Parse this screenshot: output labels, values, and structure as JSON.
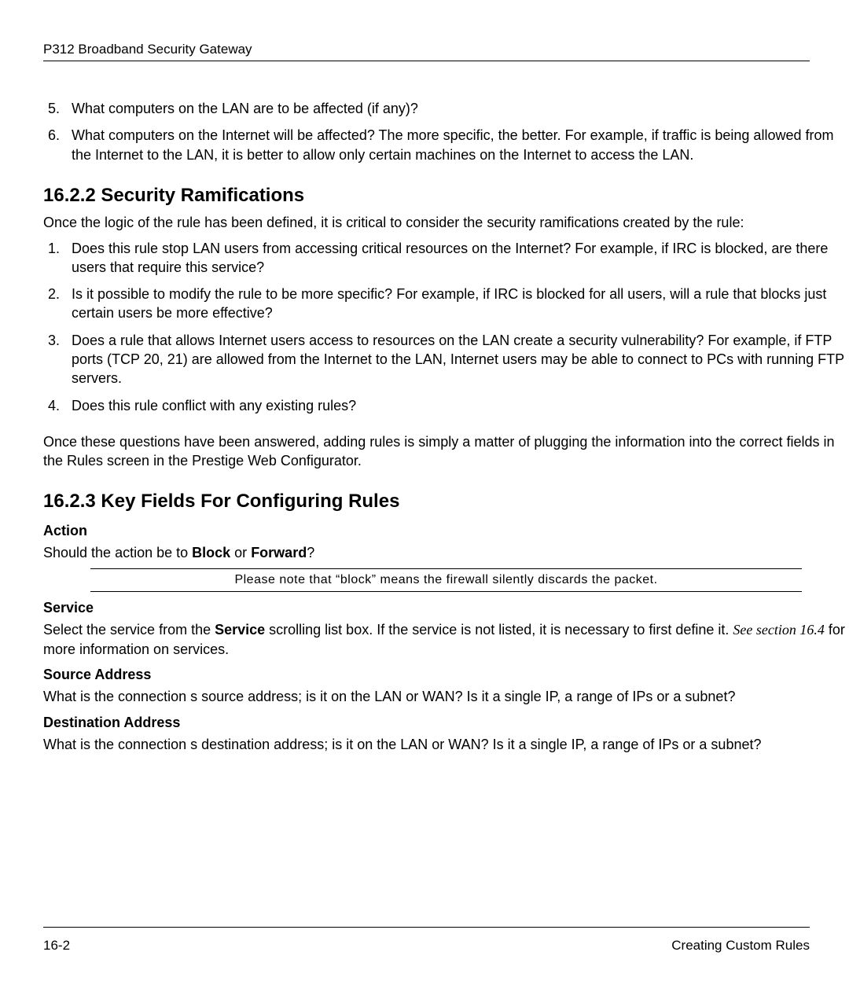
{
  "header": {
    "running_head": "P312  Broadband Security Gateway"
  },
  "top_list": {
    "start": 5,
    "items": [
      "What computers on the LAN are to be affected (if any)?",
      "What computers on the Internet will be affected? The more specific, the better. For example, if traffic is being allowed from the Internet to the LAN, it is better to allow only certain machines on the Internet to access the LAN."
    ]
  },
  "sec_ram": {
    "heading": "16.2.2 Security Ramifications",
    "intro": "Once the logic of the rule has been defined, it is critical to consider the security ramifications created by the rule:",
    "items": [
      "Does this rule stop LAN users from accessing critical resources on the Internet? For example, if IRC is blocked, are there users that require this service?",
      "Is it possible to modify the rule to be more specific? For example, if IRC is blocked for all users, will a rule that blocks just certain users be more effective?",
      "Does a rule that allows Internet users access to resources on the LAN create a security vulnerability? For example, if FTP ports (TCP 20, 21) are allowed from the Internet to the LAN, Internet users may be able to connect to PCs with running FTP servers.",
      "Does this rule conflict with any existing rules?"
    ],
    "outro": "Once these questions have been answered, adding rules is simply a matter of plugging the information into the correct fields in the Rules screen in the Prestige Web Configurator."
  },
  "key_fields": {
    "heading": "16.2.3 Key Fields For Configuring Rules",
    "action": {
      "label": "Action",
      "text_pre": "Should the action be to ",
      "block": "Block",
      "mid": " or ",
      "forward": "Forward",
      "text_post": "?",
      "note": "Please note that “block” means the firewall silently discards the packet."
    },
    "service": {
      "label": "Service",
      "text_pre": "Select the service from the ",
      "bold": "Service",
      "text_mid": " scrolling list box. If the service is not listed, it is necessary to first define it. ",
      "italic": "See section 16.4",
      "text_post": " for more information on services."
    },
    "source": {
      "label": "Source Address",
      "text": "What is the connection s source address; is it on the LAN or WAN? Is it a single IP, a range of IPs or a subnet?"
    },
    "dest": {
      "label": "Destination Address",
      "text": "What is the connection s destination address; is it on the LAN or WAN? Is it a single IP, a range of IPs or a subnet?"
    }
  },
  "footer": {
    "left": "16-2",
    "right": "Creating Custom Rules"
  }
}
